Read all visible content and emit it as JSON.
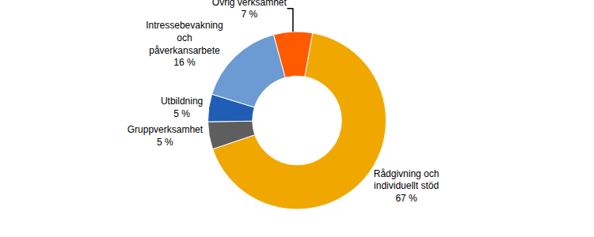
{
  "chart_data": {
    "type": "pie",
    "categories": [
      "Rådgivning och individuellt stöd",
      "Gruppverksamhet",
      "Utbildning",
      "Intressebevakning och påverkansarbete",
      "Övrig verksamhet"
    ],
    "values": [
      67,
      5,
      5,
      16,
      7
    ],
    "value_labels": [
      "67 %",
      "5 %",
      "5 %",
      "16 %",
      "7 %"
    ],
    "colors": [
      "#f0a800",
      "#5e5e5e",
      "#1f5eb4",
      "#6b9bd2",
      "#ff5a00"
    ],
    "data_labels": true
  }
}
